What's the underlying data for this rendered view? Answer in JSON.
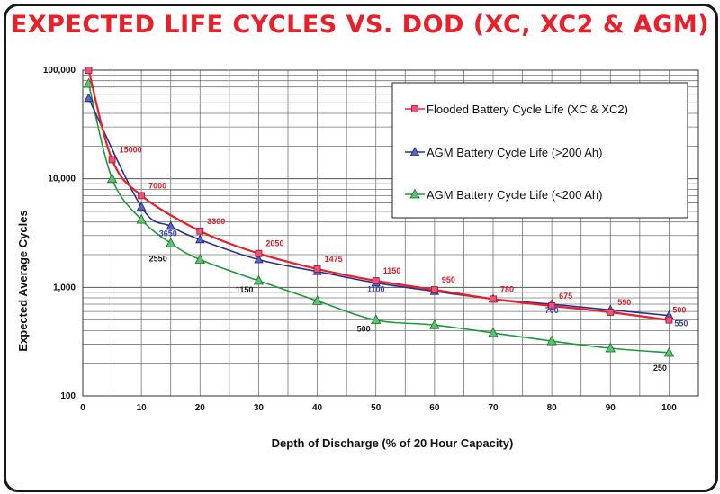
{
  "chart_data": {
    "type": "line",
    "title": "EXPECTED LIFE CYCLES VS. DOD (XC, XC2 & AGM)",
    "xlabel": "Depth of Discharge (% of 20 Hour Capacity)",
    "ylabel": "Expected Average Cycles",
    "yscale": "log",
    "xlim": [
      0,
      105
    ],
    "ylim": [
      100,
      100000
    ],
    "xticks": [
      "0",
      "10",
      "20",
      "30",
      "40",
      "50",
      "60",
      "70",
      "80",
      "90",
      "100"
    ],
    "yticks": [
      "100",
      "1,000",
      "10,000",
      "100,000"
    ],
    "grid": true,
    "legend_position": "top-right",
    "series": [
      {
        "name": "Flooded Battery Cycle Life (XC & XC2)",
        "color": "#e8202a",
        "marker": "square",
        "x": [
          1,
          5,
          10,
          20,
          30,
          40,
          50,
          60,
          70,
          80,
          90,
          100
        ],
        "y": [
          100000,
          15000,
          7000,
          3300,
          2050,
          1475,
          1150,
          950,
          780,
          675,
          590,
          500
        ]
      },
      {
        "name": "AGM Battery Cycle Life (>200 Ah)",
        "color": "#2a2f8f",
        "marker": "triangle",
        "x": [
          1,
          10,
          15,
          20,
          30,
          40,
          50,
          60,
          70,
          80,
          90,
          100
        ],
        "y": [
          55000,
          5500,
          3650,
          2750,
          1800,
          1400,
          1100,
          920,
          780,
          700,
          620,
          550
        ]
      },
      {
        "name": "AGM Battery Cycle Life (<200 Ah)",
        "color": "#1f9a3a",
        "marker": "triangle-green",
        "x": [
          1,
          5,
          10,
          15,
          20,
          30,
          40,
          50,
          60,
          70,
          80,
          90,
          100
        ],
        "y": [
          75000,
          10000,
          4200,
          2550,
          1800,
          1150,
          750,
          500,
          450,
          380,
          320,
          275,
          250
        ]
      }
    ],
    "data_labels": [
      {
        "text": "15000",
        "x": 5,
        "y": 15000,
        "series": 0
      },
      {
        "text": "7000",
        "x": 10,
        "y": 7000,
        "series": 0
      },
      {
        "text": "3300",
        "x": 20,
        "y": 3300,
        "series": 0
      },
      {
        "text": "2050",
        "x": 30,
        "y": 2050,
        "series": 0
      },
      {
        "text": "1475",
        "x": 40,
        "y": 1475,
        "series": 0
      },
      {
        "text": "1150",
        "x": 50,
        "y": 1150,
        "series": 0
      },
      {
        "text": "950",
        "x": 60,
        "y": 950,
        "series": 0
      },
      {
        "text": "780",
        "x": 70,
        "y": 780,
        "series": 0
      },
      {
        "text": "675",
        "x": 80,
        "y": 675,
        "series": 0
      },
      {
        "text": "590",
        "x": 90,
        "y": 590,
        "series": 0
      },
      {
        "text": "500",
        "x": 100,
        "y": 500,
        "series": 0
      },
      {
        "text": "3650",
        "x": 15,
        "y": 3650,
        "series": 1
      },
      {
        "text": "1100",
        "x": 50,
        "y": 1100,
        "series": 1
      },
      {
        "text": "700",
        "x": 80,
        "y": 700,
        "series": 1
      },
      {
        "text": "550",
        "x": 100,
        "y": 550,
        "series": 1
      },
      {
        "text": "2550",
        "x": 15,
        "y": 2550,
        "series": 2
      },
      {
        "text": "1150",
        "x": 30,
        "y": 1150,
        "series": 2
      },
      {
        "text": "500",
        "x": 50,
        "y": 500,
        "series": 2
      },
      {
        "text": "250",
        "x": 100,
        "y": 250,
        "series": 2
      }
    ]
  }
}
